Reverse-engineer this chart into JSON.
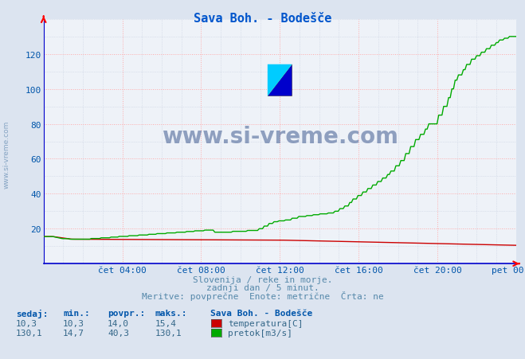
{
  "title": "Sava Boh. - Bodešče",
  "bg_color": "#dce4f0",
  "plot_bg_color": "#eef2f8",
  "grid_color_major": "#ffaaaa",
  "grid_color_minor": "#c8d0e0",
  "xlabel_color": "#0055aa",
  "ylabel_color": "#0055aa",
  "title_color": "#0055cc",
  "x_tick_labels": [
    "čet 04:00",
    "čet 08:00",
    "čet 12:00",
    "čet 16:00",
    "čet 20:00",
    "pet 00:00"
  ],
  "x_tick_positions": [
    0.1667,
    0.3333,
    0.5,
    0.6667,
    0.8333,
    1.0
  ],
  "ylim": [
    0,
    140
  ],
  "yticks": [
    20,
    40,
    60,
    80,
    100,
    120
  ],
  "temp_color": "#cc0000",
  "flow_color": "#00aa00",
  "watermark_text": "www.si-vreme.com",
  "watermark_color": "#1a3a7a",
  "watermark_alpha": 0.45,
  "sub_text1": "Slovenija / reke in morje.",
  "sub_text2": "zadnji dan / 5 minut.",
  "sub_text3": "Meritve: povprečne  Enote: metrične  Črta: ne",
  "legend_title": "Sava Boh. - Bodešče",
  "legend_entries": [
    "temperatura[C]",
    "pretok[m3/s]"
  ],
  "legend_colors": [
    "#cc0000",
    "#00aa00"
  ],
  "table_headers": [
    "sedaj:",
    "min.:",
    "povpr.:",
    "maks.:"
  ],
  "table_row1": [
    "10,3",
    "10,3",
    "14,0",
    "15,4"
  ],
  "table_row2": [
    "130,1",
    "14,7",
    "40,3",
    "130,1"
  ],
  "side_label": "www.si-vreme.com"
}
